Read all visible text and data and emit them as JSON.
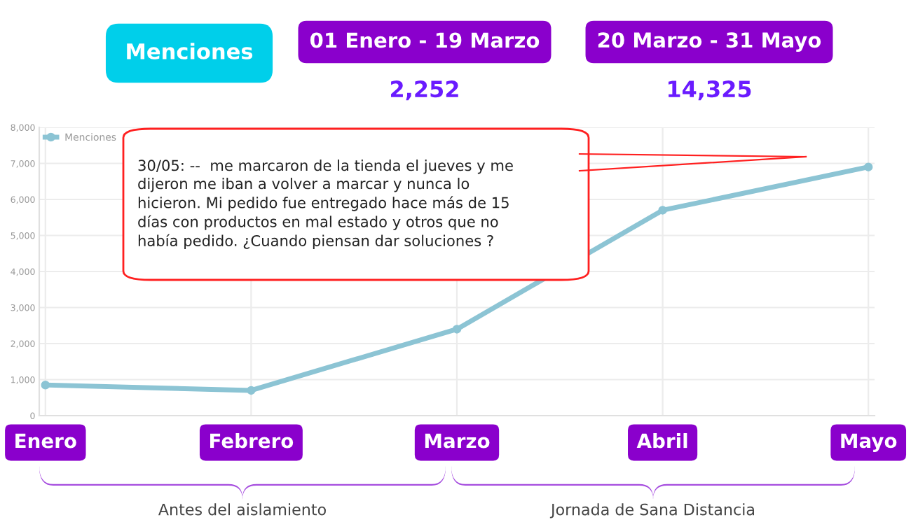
{
  "chart_data": {
    "type": "line",
    "categories": [
      "Enero",
      "Febrero",
      "Marzo",
      "Abril",
      "Mayo"
    ],
    "series": [
      {
        "name": "Menciones",
        "color": "#8cc4d4",
        "values": [
          850,
          700,
          2400,
          5700,
          6900
        ]
      }
    ],
    "ylim": [
      0,
      8000
    ],
    "yticks": [
      0,
      {
        "value": 1000,
        "label": "1,000"
      },
      {
        "value": 2000,
        "label": "2,000"
      },
      {
        "value": 3000,
        "label": "3,000"
      },
      {
        "value": 4000,
        "label": "4,000"
      },
      {
        "value": 5000,
        "label": "5,000"
      },
      {
        "value": 6000,
        "label": "6,000"
      },
      {
        "value": 7000,
        "label": "7,000"
      },
      {
        "value": 8000,
        "label": "8,000"
      }
    ],
    "grid": true,
    "legend": "top left",
    "marker": "circle",
    "line_style": "solid",
    "annotations": [
      "Menciones",
      "01 Enero - 19 Marzo",
      "2,252",
      "20 Marzo - 31 Mayo",
      "14,325",
      "30/05: --  me marcaron de la tienda el jueves y me\ndijeron me iban a volver a marcar y nunca lo\nhicieron. Mi pedido fue entregado hace más de 15\ndías con productos en mal estado y otros que no\nhabía pedido. ¿Cuando piensan dar soluciones ?",
      "Antes del aislamiento",
      "Jornada de Sana Distancia"
    ]
  }
}
